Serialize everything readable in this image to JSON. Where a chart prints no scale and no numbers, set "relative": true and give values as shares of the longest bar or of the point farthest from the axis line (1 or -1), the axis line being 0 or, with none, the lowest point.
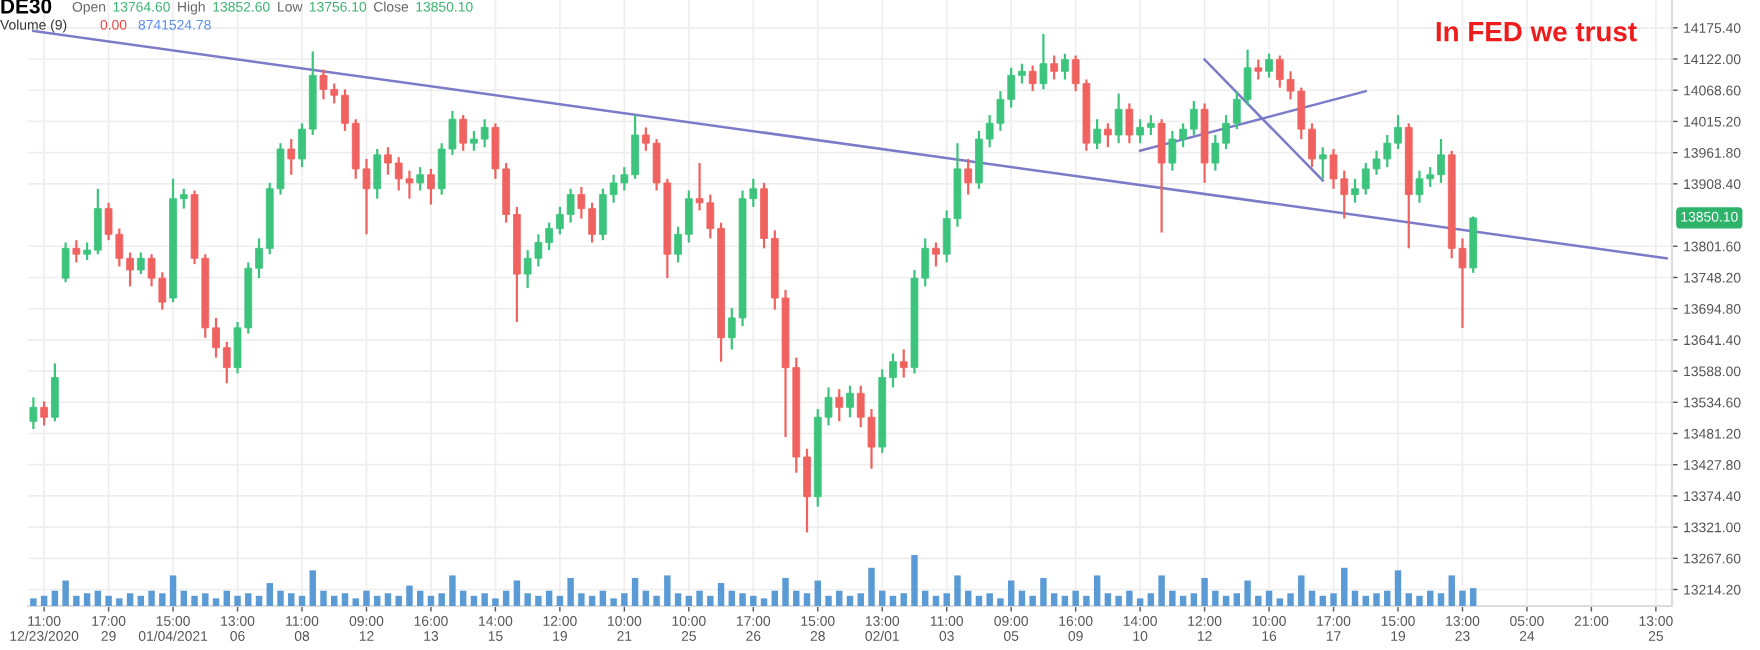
{
  "chart_data": [
    {
      "type": "candlestick",
      "title": "DE30",
      "categories": [
        null,
        "11:00\n12/23/2020",
        null,
        null,
        null,
        null,
        null,
        "17:00\n29",
        null,
        null,
        null,
        null,
        null,
        "15:00\n01/04/2021",
        null,
        null,
        null,
        null,
        null,
        "13:00\n06",
        null,
        null,
        null,
        null,
        null,
        "11:00\n08",
        null,
        null,
        null,
        null,
        null,
        "09:00\n12",
        null,
        null,
        null,
        null,
        null,
        "16:00\n13",
        null,
        null,
        null,
        null,
        null,
        "14:00\n15",
        null,
        null,
        null,
        null,
        null,
        "12:00\n19",
        null,
        null,
        null,
        null,
        null,
        "10:00\n21",
        null,
        null,
        null,
        null,
        null,
        "10:00\n25",
        null,
        null,
        null,
        null,
        null,
        "17:00\n26",
        null,
        null,
        null,
        null,
        null,
        "15:00\n28",
        null,
        null,
        null,
        null,
        null,
        "13:00\n02/01",
        null,
        null,
        null,
        null,
        null,
        "11:00\n03",
        null,
        null,
        null,
        null,
        null,
        "09:00\n05",
        null,
        null,
        null,
        null,
        null,
        "16:00\n09",
        null,
        null,
        null,
        null,
        null,
        "14:00\n10",
        null,
        null,
        null,
        null,
        null,
        "12:00\n12",
        null,
        null,
        null,
        null,
        null,
        "10:00\n16",
        null,
        null,
        null,
        null,
        null,
        "17:00\n17",
        null,
        null,
        null,
        null,
        null,
        "15:00\n19",
        null,
        null,
        null,
        null,
        null,
        "13:00\n23",
        null,
        null,
        null,
        null,
        null,
        "05:00\n24",
        null,
        null,
        null,
        null,
        null,
        "21:00",
        null,
        null,
        null,
        null,
        null,
        "13:00\n25",
        null
      ],
      "ohlc": [
        [
          13502,
          13543,
          13489,
          13526
        ],
        [
          13526,
          13536,
          13495,
          13509
        ],
        [
          13509,
          13601,
          13502,
          13577
        ],
        [
          13747,
          13808,
          13740,
          13798
        ],
        [
          13798,
          13812,
          13774,
          13788
        ],
        [
          13788,
          13808,
          13778,
          13795
        ],
        [
          13795,
          13900,
          13788,
          13866
        ],
        [
          13866,
          13876,
          13812,
          13822
        ],
        [
          13822,
          13832,
          13767,
          13781
        ],
        [
          13781,
          13791,
          13733,
          13761
        ],
        [
          13761,
          13791,
          13754,
          13781
        ],
        [
          13781,
          13788,
          13733,
          13747
        ],
        [
          13747,
          13757,
          13693,
          13706
        ],
        [
          13713,
          13917,
          13706,
          13883
        ],
        [
          13883,
          13900,
          13866,
          13890
        ],
        [
          13890,
          13897,
          13771,
          13781
        ],
        [
          13781,
          13788,
          13645,
          13662
        ],
        [
          13662,
          13679,
          13611,
          13628
        ],
        [
          13628,
          13638,
          13567,
          13594
        ],
        [
          13594,
          13672,
          13584,
          13662
        ],
        [
          13662,
          13774,
          13652,
          13764
        ],
        [
          13764,
          13815,
          13747,
          13798
        ],
        [
          13798,
          13910,
          13788,
          13900
        ],
        [
          13900,
          13978,
          13890,
          13968
        ],
        [
          13968,
          13985,
          13924,
          13951
        ],
        [
          13951,
          14012,
          13937,
          14002
        ],
        [
          14002,
          14135,
          13992,
          14094
        ],
        [
          14094,
          14104,
          14053,
          14070
        ],
        [
          14070,
          14080,
          14046,
          14060
        ],
        [
          14060,
          14070,
          13999,
          14012
        ],
        [
          14012,
          14019,
          13917,
          13934
        ],
        [
          13934,
          13951,
          13822,
          13900
        ],
        [
          13900,
          13968,
          13883,
          13958
        ],
        [
          13958,
          13971,
          13924,
          13944
        ],
        [
          13944,
          13954,
          13897,
          13917
        ],
        [
          13917,
          13931,
          13883,
          13910
        ],
        [
          13910,
          13937,
          13897,
          13924
        ],
        [
          13924,
          13934,
          13873,
          13900
        ],
        [
          13900,
          13978,
          13890,
          13968
        ],
        [
          13968,
          14033,
          13958,
          14019
        ],
        [
          14019,
          14026,
          13965,
          13978
        ],
        [
          13978,
          13999,
          13965,
          13985
        ],
        [
          13985,
          14019,
          13971,
          14005
        ],
        [
          14005,
          14012,
          13917,
          13934
        ],
        [
          13934,
          13944,
          13842,
          13856
        ],
        [
          13856,
          13869,
          13672,
          13754
        ],
        [
          13754,
          13795,
          13730,
          13781
        ],
        [
          13781,
          13822,
          13767,
          13808
        ],
        [
          13808,
          13842,
          13795,
          13832
        ],
        [
          13832,
          13869,
          13822,
          13856
        ],
        [
          13856,
          13900,
          13842,
          13890
        ],
        [
          13890,
          13903,
          13849,
          13866
        ],
        [
          13866,
          13876,
          13808,
          13822
        ],
        [
          13822,
          13900,
          13812,
          13890
        ],
        [
          13890,
          13924,
          13876,
          13910
        ],
        [
          13910,
          13937,
          13897,
          13924
        ],
        [
          13924,
          14026,
          13917,
          13992
        ],
        [
          13992,
          14005,
          13965,
          13978
        ],
        [
          13978,
          13985,
          13897,
          13910
        ],
        [
          13910,
          13917,
          13747,
          13788
        ],
        [
          13788,
          13835,
          13774,
          13822
        ],
        [
          13822,
          13897,
          13808,
          13883
        ],
        [
          13883,
          13944,
          13863,
          13876
        ],
        [
          13876,
          13890,
          13815,
          13832
        ],
        [
          13832,
          13842,
          13604,
          13645
        ],
        [
          13645,
          13696,
          13625,
          13679
        ],
        [
          13679,
          13897,
          13665,
          13883
        ],
        [
          13883,
          13917,
          13869,
          13900
        ],
        [
          13900,
          13910,
          13798,
          13815
        ],
        [
          13815,
          13829,
          13693,
          13713
        ],
        [
          13713,
          13727,
          13475,
          13594
        ],
        [
          13594,
          13611,
          13414,
          13441
        ],
        [
          13441,
          13455,
          13312,
          13373
        ],
        [
          13373,
          13523,
          13356,
          13509
        ],
        [
          13509,
          13560,
          13495,
          13543
        ],
        [
          13543,
          13557,
          13502,
          13526
        ],
        [
          13526,
          13563,
          13509,
          13550
        ],
        [
          13550,
          13563,
          13492,
          13509
        ],
        [
          13509,
          13523,
          13421,
          13458
        ],
        [
          13458,
          13591,
          13448,
          13577
        ],
        [
          13577,
          13618,
          13560,
          13604
        ],
        [
          13604,
          13625,
          13577,
          13594
        ],
        [
          13594,
          13761,
          13584,
          13747
        ],
        [
          13747,
          13815,
          13733,
          13798
        ],
        [
          13798,
          13808,
          13767,
          13788
        ],
        [
          13788,
          13863,
          13774,
          13849
        ],
        [
          13849,
          13978,
          13835,
          13934
        ],
        [
          13934,
          13951,
          13890,
          13910
        ],
        [
          13910,
          13999,
          13900,
          13985
        ],
        [
          13985,
          14026,
          13971,
          14012
        ],
        [
          14012,
          14067,
          13999,
          14053
        ],
        [
          14053,
          14107,
          14039,
          14094
        ],
        [
          14094,
          14114,
          14080,
          14101
        ],
        [
          14101,
          14111,
          14067,
          14080
        ],
        [
          14080,
          14165,
          14070,
          14114
        ],
        [
          14114,
          14128,
          14087,
          14101
        ],
        [
          14101,
          14131,
          14087,
          14121
        ],
        [
          14121,
          14128,
          14067,
          14080
        ],
        [
          14080,
          14087,
          13965,
          13978
        ],
        [
          13978,
          14019,
          13968,
          14002
        ],
        [
          14002,
          14012,
          13971,
          13992
        ],
        [
          13992,
          14063,
          13978,
          14036
        ],
        [
          14036,
          14046,
          13978,
          13992
        ],
        [
          13992,
          14019,
          13978,
          14005
        ],
        [
          14005,
          14026,
          13992,
          14012
        ],
        [
          14012,
          14019,
          13825,
          13944
        ],
        [
          13944,
          13999,
          13931,
          13985
        ],
        [
          13985,
          14012,
          13971,
          14002
        ],
        [
          14002,
          14050,
          13992,
          14036
        ],
        [
          14036,
          14046,
          13910,
          13944
        ],
        [
          13944,
          13992,
          13931,
          13978
        ],
        [
          13978,
          14026,
          13968,
          14012
        ],
        [
          14012,
          14067,
          14002,
          14053
        ],
        [
          14053,
          14138,
          14043,
          14107
        ],
        [
          14107,
          14121,
          14087,
          14101
        ],
        [
          14101,
          14131,
          14090,
          14121
        ],
        [
          14121,
          14128,
          14073,
          14087
        ],
        [
          14087,
          14101,
          14053,
          14067
        ],
        [
          14067,
          14073,
          13985,
          14002
        ],
        [
          14002,
          14012,
          13937,
          13951
        ],
        [
          13951,
          13971,
          13917,
          13958
        ],
        [
          13958,
          13968,
          13900,
          13917
        ],
        [
          13917,
          13931,
          13849,
          13890
        ],
        [
          13890,
          13917,
          13876,
          13900
        ],
        [
          13900,
          13944,
          13890,
          13934
        ],
        [
          13934,
          13965,
          13924,
          13951
        ],
        [
          13951,
          13992,
          13937,
          13978
        ],
        [
          13978,
          14026,
          13968,
          14005
        ],
        [
          14005,
          14012,
          13798,
          13890
        ],
        [
          13890,
          13931,
          13876,
          13917
        ],
        [
          13917,
          13937,
          13903,
          13924
        ],
        [
          13924,
          13985,
          13910,
          13958
        ],
        [
          13958,
          13965,
          13781,
          13798
        ],
        [
          13798,
          13815,
          13662,
          13764.6
        ],
        [
          13764.6,
          13852.6,
          13756.1,
          13850.1
        ],
        null,
        null,
        null,
        null,
        null,
        null,
        null,
        null,
        null,
        null,
        null,
        null,
        null,
        null,
        null,
        null,
        null,
        null
      ],
      "colors": [
        "#3cc47c",
        "#f0625f",
        "#3cc47c",
        "#3cc47c",
        "#f0625f",
        "#3cc47c",
        "#3cc47c",
        "#f0625f",
        "#f0625f",
        "#f0625f",
        "#3cc47c",
        "#f0625f",
        "#f0625f",
        "#3cc47c",
        "#3cc47c",
        "#f0625f",
        "#f0625f",
        "#f0625f",
        "#f0625f",
        "#3cc47c",
        "#3cc47c",
        "#3cc47c",
        "#3cc47c",
        "#3cc47c",
        "#f0625f",
        "#3cc47c",
        "#3cc47c",
        "#f0625f",
        "#f0625f",
        "#f0625f",
        "#f0625f",
        "#f0625f",
        "#3cc47c",
        "#f0625f",
        "#f0625f",
        "#f0625f",
        "#3cc47c",
        "#f0625f",
        "#3cc47c",
        "#3cc47c",
        "#f0625f",
        "#3cc47c",
        "#3cc47c",
        "#f0625f",
        "#f0625f",
        "#f0625f",
        "#3cc47c",
        "#3cc47c",
        "#3cc47c",
        "#3cc47c",
        "#3cc47c",
        "#f0625f",
        "#f0625f",
        "#3cc47c",
        "#3cc47c",
        "#3cc47c",
        "#3cc47c",
        "#f0625f",
        "#f0625f",
        "#f0625f",
        "#3cc47c",
        "#3cc47c",
        "#f0625f",
        "#f0625f",
        "#f0625f",
        "#3cc47c",
        "#3cc47c",
        "#3cc47c",
        "#f0625f",
        "#f0625f",
        "#f0625f",
        "#f0625f",
        "#f0625f",
        "#3cc47c",
        "#3cc47c",
        "#f0625f",
        "#3cc47c",
        "#f0625f",
        "#f0625f",
        "#3cc47c",
        "#3cc47c",
        "#f0625f",
        "#3cc47c",
        "#3cc47c",
        "#f0625f",
        "#3cc47c",
        "#3cc47c",
        "#f0625f",
        "#3cc47c",
        "#3cc47c",
        "#3cc47c",
        "#3cc47c",
        "#3cc47c",
        "#f0625f",
        "#3cc47c",
        "#f0625f",
        "#3cc47c",
        "#f0625f",
        "#f0625f",
        "#3cc47c",
        "#f0625f",
        "#3cc47c",
        "#f0625f",
        "#3cc47c",
        "#3cc47c",
        "#f0625f",
        "#3cc47c",
        "#3cc47c",
        "#3cc47c",
        "#f0625f",
        "#3cc47c",
        "#3cc47c",
        "#3cc47c",
        "#3cc47c",
        "#f0625f",
        "#3cc47c",
        "#f0625f",
        "#f0625f",
        "#f0625f",
        "#f0625f",
        "#3cc47c",
        "#f0625f",
        "#f0625f",
        "#3cc47c",
        "#3cc47c",
        "#3cc47c",
        "#3cc47c",
        "#3cc47c",
        "#f0625f",
        "#3cc47c",
        "#3cc47c",
        "#3cc47c",
        "#f0625f",
        "#f0625f",
        "#3cc47c",
        null,
        null,
        null,
        null,
        null,
        null,
        null,
        null,
        null,
        null,
        null,
        null,
        null,
        null,
        null,
        null,
        null,
        null
      ],
      "series": [
        {
          "type": "line",
          "color": "#7b7bc8",
          "values": [
            14170,
            null,
            null,
            null,
            null,
            null,
            null,
            null,
            null,
            null,
            null,
            null,
            null,
            null,
            null,
            null,
            null,
            null,
            null,
            null,
            null,
            null,
            null,
            null,
            null,
            null,
            null,
            null,
            null,
            null,
            null,
            null,
            null,
            null,
            null,
            null,
            null,
            null,
            null,
            null,
            null,
            null,
            null,
            null,
            null,
            null,
            null,
            null,
            null,
            null,
            null,
            null,
            null,
            null,
            null,
            null,
            null,
            null,
            null,
            null,
            null,
            null,
            null,
            null,
            null,
            null,
            null,
            null,
            null,
            null,
            null,
            null,
            null,
            null,
            null,
            null,
            null,
            null,
            null,
            null,
            null,
            null,
            null,
            null,
            null,
            null,
            null,
            null,
            null,
            null,
            null,
            null,
            null,
            null,
            null,
            null,
            null,
            null,
            null,
            null,
            null,
            null,
            null,
            null,
            null,
            null,
            null,
            null,
            null,
            null,
            null,
            null,
            null,
            null,
            null,
            null,
            null,
            null,
            null,
            null,
            null,
            null,
            null,
            null,
            null,
            null,
            null,
            null,
            null,
            null,
            null,
            null,
            null,
            null,
            null,
            null,
            null,
            null,
            null,
            null,
            null,
            null,
            null,
            null,
            null,
            null,
            null,
            null,
            null,
            null,
            null,
            null,
            13781
          ]
        },
        {
          "type": "line",
          "color": "#7b7bc8",
          "values": [
            null,
            null,
            null,
            null,
            null,
            null,
            null,
            null,
            null,
            null,
            null,
            null,
            null,
            null,
            null,
            null,
            null,
            null,
            null,
            null,
            null,
            null,
            null,
            null,
            null,
            null,
            null,
            null,
            null,
            null,
            null,
            null,
            null,
            null,
            null,
            null,
            null,
            null,
            null,
            null,
            null,
            null,
            null,
            null,
            null,
            null,
            null,
            null,
            null,
            null,
            null,
            null,
            null,
            null,
            null,
            null,
            null,
            null,
            null,
            null,
            null,
            null,
            null,
            null,
            null,
            null,
            null,
            null,
            null,
            null,
            null,
            null,
            null,
            null,
            null,
            null,
            null,
            null,
            null,
            null,
            null,
            null,
            null,
            null,
            null,
            null,
            null,
            null,
            null,
            null,
            null,
            null,
            null,
            null,
            null,
            null,
            null,
            null,
            null,
            null,
            null,
            null,
            null,
            13965,
            null,
            null,
            null,
            null,
            null,
            null,
            null,
            null,
            null,
            null,
            null,
            null,
            null,
            null,
            null,
            null,
            null,
            null,
            null,
            null,
            14067,
            null,
            null,
            null,
            null,
            null,
            null,
            null,
            null,
            null,
            null,
            null,
            null,
            null,
            null,
            null,
            null,
            null,
            null,
            null,
            null,
            null,
            null,
            null,
            null,
            null,
            null,
            null,
            null
          ]
        },
        {
          "type": "line",
          "color": "#7b7bc8",
          "values": [
            null,
            null,
            null,
            null,
            null,
            null,
            null,
            null,
            null,
            null,
            null,
            null,
            null,
            null,
            null,
            null,
            null,
            null,
            null,
            null,
            null,
            null,
            null,
            null,
            null,
            null,
            null,
            null,
            null,
            null,
            null,
            null,
            null,
            null,
            null,
            null,
            null,
            null,
            null,
            null,
            null,
            null,
            null,
            null,
            null,
            null,
            null,
            null,
            null,
            null,
            null,
            null,
            null,
            null,
            null,
            null,
            null,
            null,
            null,
            null,
            null,
            null,
            null,
            null,
            null,
            null,
            null,
            null,
            null,
            null,
            null,
            null,
            null,
            null,
            null,
            null,
            null,
            null,
            null,
            null,
            null,
            null,
            null,
            null,
            null,
            null,
            null,
            null,
            null,
            null,
            null,
            null,
            null,
            null,
            null,
            null,
            null,
            null,
            null,
            null,
            null,
            null,
            null,
            null,
            null,
            null,
            null,
            null,
            null,
            14121,
            null,
            null,
            null,
            null,
            null,
            null,
            null,
            null,
            null,
            null,
            13914,
            null,
            null,
            null,
            null,
            null,
            null,
            null,
            null,
            null,
            null,
            null,
            null,
            null,
            null,
            null,
            null,
            null,
            null,
            null,
            null,
            null,
            null,
            null,
            null,
            null,
            null,
            null,
            null,
            null,
            null,
            null,
            null
          ]
        }
      ],
      "ylim": [
        13186,
        14223
      ],
      "yticks": [
        {
          "value": 14175.4,
          "label": "14175.40"
        },
        {
          "value": 14122,
          "label": "14122.00"
        },
        {
          "value": 14068.6,
          "label": "14068.60"
        },
        {
          "value": 14015.2,
          "label": "14015.20"
        },
        {
          "value": 13961.8,
          "label": "13961.80"
        },
        {
          "value": 13908.4,
          "label": "13908.40"
        },
        {
          "value": 13801.6,
          "label": "13801.60"
        },
        {
          "value": 13748.2,
          "label": "13748.20"
        },
        {
          "value": 13694.8,
          "label": "13694.80"
        },
        {
          "value": 13641.4,
          "label": "13641.40"
        },
        {
          "value": 13588,
          "label": "13588.00"
        },
        {
          "value": 13534.6,
          "label": "13534.60"
        },
        {
          "value": 13481.2,
          "label": "13481.20"
        },
        {
          "value": 13427.8,
          "label": "13427.80"
        },
        {
          "value": 13374.4,
          "label": "13374.40"
        },
        {
          "value": 13321,
          "label": "13321.00"
        },
        {
          "value": 13267.6,
          "label": "13267.60"
        },
        {
          "value": 13214.2,
          "label": "13214.20"
        }
      ],
      "grid": true,
      "annotations": [
        "Open",
        "13764.60",
        "High",
        "13852.60",
        "Low",
        "13756.10",
        "Close",
        "13850.10",
        "In FED we trust",
        {
          "text": "13850.10",
          "y": 13850.1
        }
      ]
    },
    {
      "type": "bar",
      "relative": true,
      "title": "Volume (9)",
      "color": "#5b9bd5",
      "categories": [
        null,
        null,
        null,
        null,
        null,
        null,
        null,
        null,
        null,
        null,
        null,
        null,
        null,
        null,
        null,
        null,
        null,
        null,
        null,
        null,
        null,
        null,
        null,
        null,
        null,
        null,
        null,
        null,
        null,
        null,
        null,
        null,
        null,
        null,
        null,
        null,
        null,
        null,
        null,
        null,
        null,
        null,
        null,
        null,
        null,
        null,
        null,
        null,
        null,
        null,
        null,
        null,
        null,
        null,
        null,
        null,
        null,
        null,
        null,
        null,
        null,
        null,
        null,
        null,
        null,
        null,
        null,
        null,
        null,
        null,
        null,
        null,
        null,
        null,
        null,
        null,
        null,
        null,
        null,
        null,
        null,
        null,
        null,
        null,
        null,
        null,
        null,
        null,
        null,
        null,
        null,
        null,
        null,
        null,
        null,
        null,
        null,
        null,
        null,
        null,
        null,
        null,
        null,
        null,
        null,
        null,
        null,
        null,
        null,
        null,
        null,
        null,
        null,
        null,
        null,
        null,
        null,
        null,
        null,
        null,
        null,
        null,
        null,
        null,
        null,
        null,
        null,
        null,
        null,
        null,
        null,
        null,
        null,
        null,
        null,
        null,
        null,
        null,
        null,
        null,
        null,
        null,
        null,
        null,
        null,
        null,
        null,
        null,
        null,
        null,
        null,
        null,
        null
      ],
      "values": [
        0.15,
        0.2,
        0.3,
        0.5,
        0.2,
        0.25,
        0.3,
        0.2,
        0.15,
        0.25,
        0.2,
        0.3,
        0.25,
        0.6,
        0.3,
        0.2,
        0.25,
        0.15,
        0.3,
        0.2,
        0.25,
        0.2,
        0.45,
        0.3,
        0.25,
        0.2,
        0.7,
        0.3,
        0.2,
        0.25,
        0.15,
        0.3,
        0.2,
        0.25,
        0.2,
        0.4,
        0.3,
        0.2,
        0.25,
        0.6,
        0.3,
        0.2,
        0.25,
        0.15,
        0.3,
        0.5,
        0.25,
        0.2,
        0.3,
        0.2,
        0.55,
        0.25,
        0.2,
        0.3,
        0.15,
        0.25,
        0.55,
        0.3,
        0.2,
        0.6,
        0.25,
        0.2,
        0.3,
        0.2,
        0.45,
        0.3,
        0.25,
        0.2,
        0.15,
        0.3,
        0.55,
        0.3,
        0.25,
        0.5,
        0.2,
        0.3,
        0.2,
        0.25,
        0.75,
        0.3,
        0.2,
        0.25,
        1,
        0.3,
        0.2,
        0.25,
        0.6,
        0.3,
        0.2,
        0.25,
        0.15,
        0.5,
        0.3,
        0.2,
        0.55,
        0.25,
        0.2,
        0.3,
        0.2,
        0.6,
        0.25,
        0.2,
        0.3,
        0.15,
        0.25,
        0.6,
        0.3,
        0.2,
        0.25,
        0.55,
        0.3,
        0.2,
        0.25,
        0.5,
        0.2,
        0.3,
        0.15,
        0.25,
        0.6,
        0.3,
        0.2,
        0.25,
        0.75,
        0.3,
        0.2,
        0.25,
        0.3,
        0.7,
        0.25,
        0.2,
        0.3,
        0.25,
        0.6,
        0.3,
        0.35,
        null,
        null,
        null,
        null,
        null,
        null,
        null,
        null,
        null,
        null,
        null,
        null,
        null,
        null,
        null,
        null,
        null,
        null
      ],
      "annotations": [
        "0.00",
        "8741524.78"
      ]
    }
  ]
}
